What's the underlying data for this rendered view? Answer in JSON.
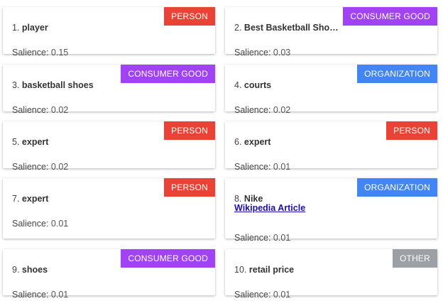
{
  "salience_label": "Salience:",
  "type_colors": {
    "PERSON": "#ea4335",
    "CONSUMER GOOD": "#a142f4",
    "ORGANIZATION": "#4285f4",
    "OTHER": "#9aa0a6"
  },
  "entities": [
    {
      "index": "1.",
      "name": "player",
      "type": "PERSON",
      "salience": "0.15"
    },
    {
      "index": "2.",
      "name": "Best Basketball Sho…",
      "type": "CONSUMER GOOD",
      "salience": "0.03"
    },
    {
      "index": "3.",
      "name": "basketball shoes",
      "type": "CONSUMER GOOD",
      "salience": "0.02"
    },
    {
      "index": "4.",
      "name": "courts",
      "type": "ORGANIZATION",
      "salience": "0.02"
    },
    {
      "index": "5.",
      "name": "expert",
      "type": "PERSON",
      "salience": "0.02"
    },
    {
      "index": "6.",
      "name": "expert",
      "type": "PERSON",
      "salience": "0.01"
    },
    {
      "index": "7.",
      "name": "expert",
      "type": "PERSON",
      "salience": "0.01"
    },
    {
      "index": "8.",
      "name": "Nike",
      "type": "ORGANIZATION",
      "salience": "0.01",
      "link": "Wikipedia Article"
    },
    {
      "index": "9.",
      "name": "shoes",
      "type": "CONSUMER GOOD",
      "salience": "0.01"
    },
    {
      "index": "10.",
      "name": "retail price",
      "type": "OTHER",
      "salience": "0.01"
    }
  ]
}
